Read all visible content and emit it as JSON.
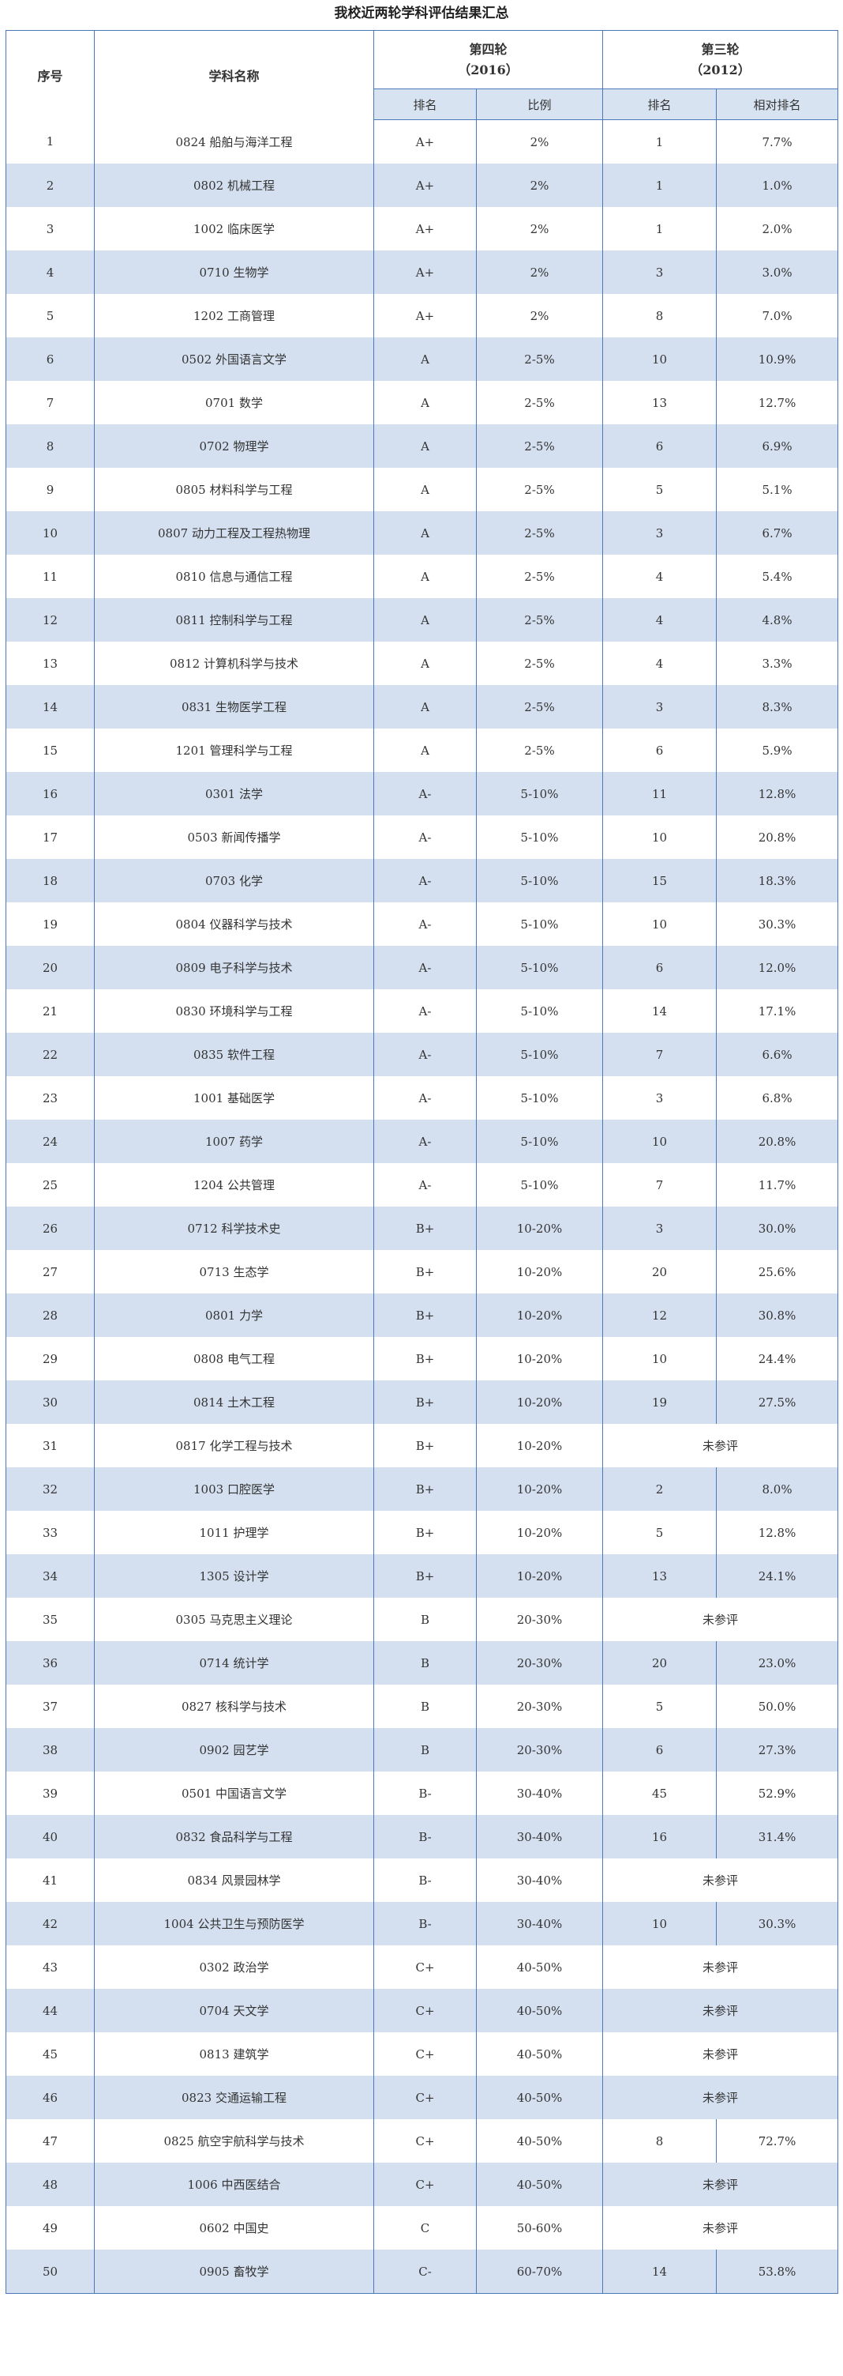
{
  "title": "我校近两轮学科评估结果汇总",
  "header": {
    "seq": "序号",
    "name": "学科名称",
    "round4_title": "第四轮",
    "round4_year": "（2016）",
    "round3_title": "第三轮",
    "round3_year": "（2012）",
    "rank": "排名",
    "ratio": "比例",
    "rank3": "排名",
    "relative_rank": "相对排名"
  },
  "rows": [
    {
      "seq": "1",
      "name": "0824 船舶与海洋工程",
      "grade": "A+",
      "ratio": "2%",
      "rank3": "1",
      "rel": "7.7%"
    },
    {
      "seq": "2",
      "name": "0802 机械工程",
      "grade": "A+",
      "ratio": "2%",
      "rank3": "1",
      "rel": "1.0%"
    },
    {
      "seq": "3",
      "name": "1002 临床医学",
      "grade": "A+",
      "ratio": "2%",
      "rank3": "1",
      "rel": "2.0%"
    },
    {
      "seq": "4",
      "name": "0710 生物学",
      "grade": "A+",
      "ratio": "2%",
      "rank3": "3",
      "rel": "3.0%"
    },
    {
      "seq": "5",
      "name": "1202 工商管理",
      "grade": "A+",
      "ratio": "2%",
      "rank3": "8",
      "rel": "7.0%"
    },
    {
      "seq": "6",
      "name": "0502 外国语言文学",
      "grade": "A",
      "ratio": "2-5%",
      "rank3": "10",
      "rel": "10.9%"
    },
    {
      "seq": "7",
      "name": "0701 数学",
      "grade": "A",
      "ratio": "2-5%",
      "rank3": "13",
      "rel": "12.7%"
    },
    {
      "seq": "8",
      "name": "0702 物理学",
      "grade": "A",
      "ratio": "2-5%",
      "rank3": "6",
      "rel": "6.9%"
    },
    {
      "seq": "9",
      "name": "0805 材料科学与工程",
      "grade": "A",
      "ratio": "2-5%",
      "rank3": "5",
      "rel": "5.1%"
    },
    {
      "seq": "10",
      "name": "0807 动力工程及工程热物理",
      "grade": "A",
      "ratio": "2-5%",
      "rank3": "3",
      "rel": "6.7%"
    },
    {
      "seq": "11",
      "name": "0810 信息与通信工程",
      "grade": "A",
      "ratio": "2-5%",
      "rank3": "4",
      "rel": "5.4%"
    },
    {
      "seq": "12",
      "name": "0811 控制科学与工程",
      "grade": "A",
      "ratio": "2-5%",
      "rank3": "4",
      "rel": "4.8%"
    },
    {
      "seq": "13",
      "name": "0812 计算机科学与技术",
      "grade": "A",
      "ratio": "2-5%",
      "rank3": "4",
      "rel": "3.3%"
    },
    {
      "seq": "14",
      "name": "0831 生物医学工程",
      "grade": "A",
      "ratio": "2-5%",
      "rank3": "3",
      "rel": "8.3%"
    },
    {
      "seq": "15",
      "name": "1201 管理科学与工程",
      "grade": "A",
      "ratio": "2-5%",
      "rank3": "6",
      "rel": "5.9%"
    },
    {
      "seq": "16",
      "name": "0301 法学",
      "grade": "A-",
      "ratio": "5-10%",
      "rank3": "11",
      "rel": "12.8%"
    },
    {
      "seq": "17",
      "name": "0503 新闻传播学",
      "grade": "A-",
      "ratio": "5-10%",
      "rank3": "10",
      "rel": "20.8%"
    },
    {
      "seq": "18",
      "name": "0703 化学",
      "grade": "A-",
      "ratio": "5-10%",
      "rank3": "15",
      "rel": "18.3%"
    },
    {
      "seq": "19",
      "name": "0804 仪器科学与技术",
      "grade": "A-",
      "ratio": "5-10%",
      "rank3": "10",
      "rel": "30.3%"
    },
    {
      "seq": "20",
      "name": "0809 电子科学与技术",
      "grade": "A-",
      "ratio": "5-10%",
      "rank3": "6",
      "rel": "12.0%"
    },
    {
      "seq": "21",
      "name": "0830 环境科学与工程",
      "grade": "A-",
      "ratio": "5-10%",
      "rank3": "14",
      "rel": "17.1%"
    },
    {
      "seq": "22",
      "name": "0835 软件工程",
      "grade": "A-",
      "ratio": "5-10%",
      "rank3": "7",
      "rel": "6.6%"
    },
    {
      "seq": "23",
      "name": "1001 基础医学",
      "grade": "A-",
      "ratio": "5-10%",
      "rank3": "3",
      "rel": "6.8%"
    },
    {
      "seq": "24",
      "name": "1007 药学",
      "grade": "A-",
      "ratio": "5-10%",
      "rank3": "10",
      "rel": "20.8%"
    },
    {
      "seq": "25",
      "name": "1204 公共管理",
      "grade": "A-",
      "ratio": "5-10%",
      "rank3": "7",
      "rel": "11.7%"
    },
    {
      "seq": "26",
      "name": "0712 科学技术史",
      "grade": "B+",
      "ratio": "10-20%",
      "rank3": "3",
      "rel": "30.0%"
    },
    {
      "seq": "27",
      "name": "0713 生态学",
      "grade": "B+",
      "ratio": "10-20%",
      "rank3": "20",
      "rel": "25.6%"
    },
    {
      "seq": "28",
      "name": "0801 力学",
      "grade": "B+",
      "ratio": "10-20%",
      "rank3": "12",
      "rel": "30.8%"
    },
    {
      "seq": "29",
      "name": "0808 电气工程",
      "grade": "B+",
      "ratio": "10-20%",
      "rank3": "10",
      "rel": "24.4%"
    },
    {
      "seq": "30",
      "name": "0814 土木工程",
      "grade": "B+",
      "ratio": "10-20%",
      "rank3": "19",
      "rel": "27.5%"
    },
    {
      "seq": "31",
      "name": "0817 化学工程与技术",
      "grade": "B+",
      "ratio": "10-20%",
      "na": "未参评"
    },
    {
      "seq": "32",
      "name": "1003 口腔医学",
      "grade": "B+",
      "ratio": "10-20%",
      "rank3": "2",
      "rel": "8.0%"
    },
    {
      "seq": "33",
      "name": "1011 护理学",
      "grade": "B+",
      "ratio": "10-20%",
      "rank3": "5",
      "rel": "12.8%"
    },
    {
      "seq": "34",
      "name": "1305 设计学",
      "grade": "B+",
      "ratio": "10-20%",
      "rank3": "13",
      "rel": "24.1%"
    },
    {
      "seq": "35",
      "name": "0305 马克思主义理论",
      "grade": "B",
      "ratio": "20-30%",
      "na": "未参评"
    },
    {
      "seq": "36",
      "name": "0714 统计学",
      "grade": "B",
      "ratio": "20-30%",
      "rank3": "20",
      "rel": "23.0%"
    },
    {
      "seq": "37",
      "name": "0827 核科学与技术",
      "grade": "B",
      "ratio": "20-30%",
      "rank3": "5",
      "rel": "50.0%"
    },
    {
      "seq": "38",
      "name": "0902 园艺学",
      "grade": "B",
      "ratio": "20-30%",
      "rank3": "6",
      "rel": "27.3%"
    },
    {
      "seq": "39",
      "name": "0501 中国语言文学",
      "grade": "B-",
      "ratio": "30-40%",
      "rank3": "45",
      "rel": "52.9%"
    },
    {
      "seq": "40",
      "name": "0832 食品科学与工程",
      "grade": "B-",
      "ratio": "30-40%",
      "rank3": "16",
      "rel": "31.4%"
    },
    {
      "seq": "41",
      "name": "0834 风景园林学",
      "grade": "B-",
      "ratio": "30-40%",
      "na": "未参评"
    },
    {
      "seq": "42",
      "name": "1004 公共卫生与预防医学",
      "grade": "B-",
      "ratio": "30-40%",
      "rank3": "10",
      "rel": "30.3%"
    },
    {
      "seq": "43",
      "name": "0302 政治学",
      "grade": "C+",
      "ratio": "40-50%",
      "na": "未参评"
    },
    {
      "seq": "44",
      "name": "0704 天文学",
      "grade": "C+",
      "ratio": "40-50%",
      "na": "未参评"
    },
    {
      "seq": "45",
      "name": "0813 建筑学",
      "grade": "C+",
      "ratio": "40-50%",
      "na": "未参评"
    },
    {
      "seq": "46",
      "name": "0823 交通运输工程",
      "grade": "C+",
      "ratio": "40-50%",
      "na": "未参评"
    },
    {
      "seq": "47",
      "name": "0825 航空宇航科学与技术",
      "grade": "C+",
      "ratio": "40-50%",
      "rank3": "8",
      "rel": "72.7%"
    },
    {
      "seq": "48",
      "name": "1006 中西医结合",
      "grade": "C+",
      "ratio": "40-50%",
      "na": "未参评"
    },
    {
      "seq": "49",
      "name": "0602 中国史",
      "grade": "C",
      "ratio": "50-60%",
      "na": "未参评"
    },
    {
      "seq": "50",
      "name": "0905 畜牧学",
      "grade": "C-",
      "ratio": "60-70%",
      "rank3": "14",
      "rel": "53.8%"
    }
  ]
}
